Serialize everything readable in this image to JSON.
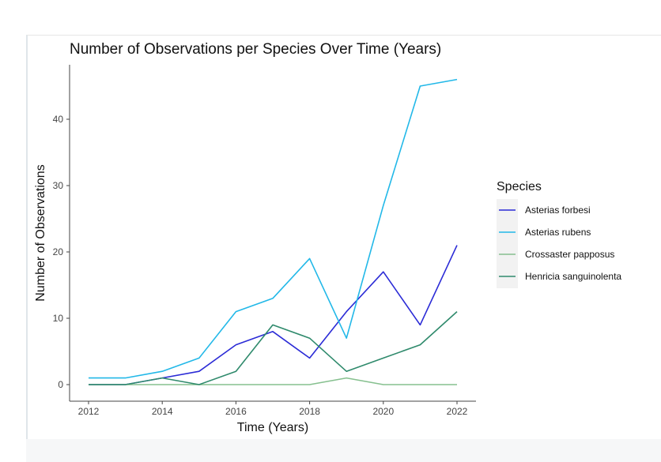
{
  "chart_data": {
    "type": "line",
    "title": "Number of Observations per Species Over Time (Years)",
    "xlabel": "Time (Years)",
    "ylabel": "Number of Observations",
    "x": [
      2012,
      2013,
      2014,
      2015,
      2016,
      2017,
      2018,
      2019,
      2020,
      2021,
      2022
    ],
    "xticks": [
      "2012",
      "2014",
      "2016",
      "2018",
      "2020",
      "2022"
    ],
    "yticks": [
      "0",
      "10",
      "20",
      "30",
      "40"
    ],
    "xlim": [
      2012,
      2022
    ],
    "ylim": [
      0,
      46
    ],
    "grid": false,
    "legend_title": "Species",
    "legend_position": "right",
    "series": [
      {
        "name": "Asterias forbesi",
        "color": "#2b2bd6",
        "values": [
          0,
          0,
          1,
          2,
          6,
          8,
          4,
          11,
          17,
          9,
          21
        ]
      },
      {
        "name": "Asterias rubens",
        "color": "#22b8e8",
        "values": [
          1,
          1,
          2,
          4,
          11,
          13,
          19,
          7,
          27,
          45,
          46
        ]
      },
      {
        "name": "Crossaster papposus",
        "color": "#86c08f",
        "values": [
          0,
          0,
          0,
          0,
          0,
          0,
          0,
          1,
          0,
          0,
          0
        ]
      },
      {
        "name": "Henricia sanguinolenta",
        "color": "#2f8a6c",
        "values": [
          0,
          0,
          1,
          0,
          2,
          9,
          7,
          2,
          4,
          6,
          11
        ]
      }
    ]
  }
}
